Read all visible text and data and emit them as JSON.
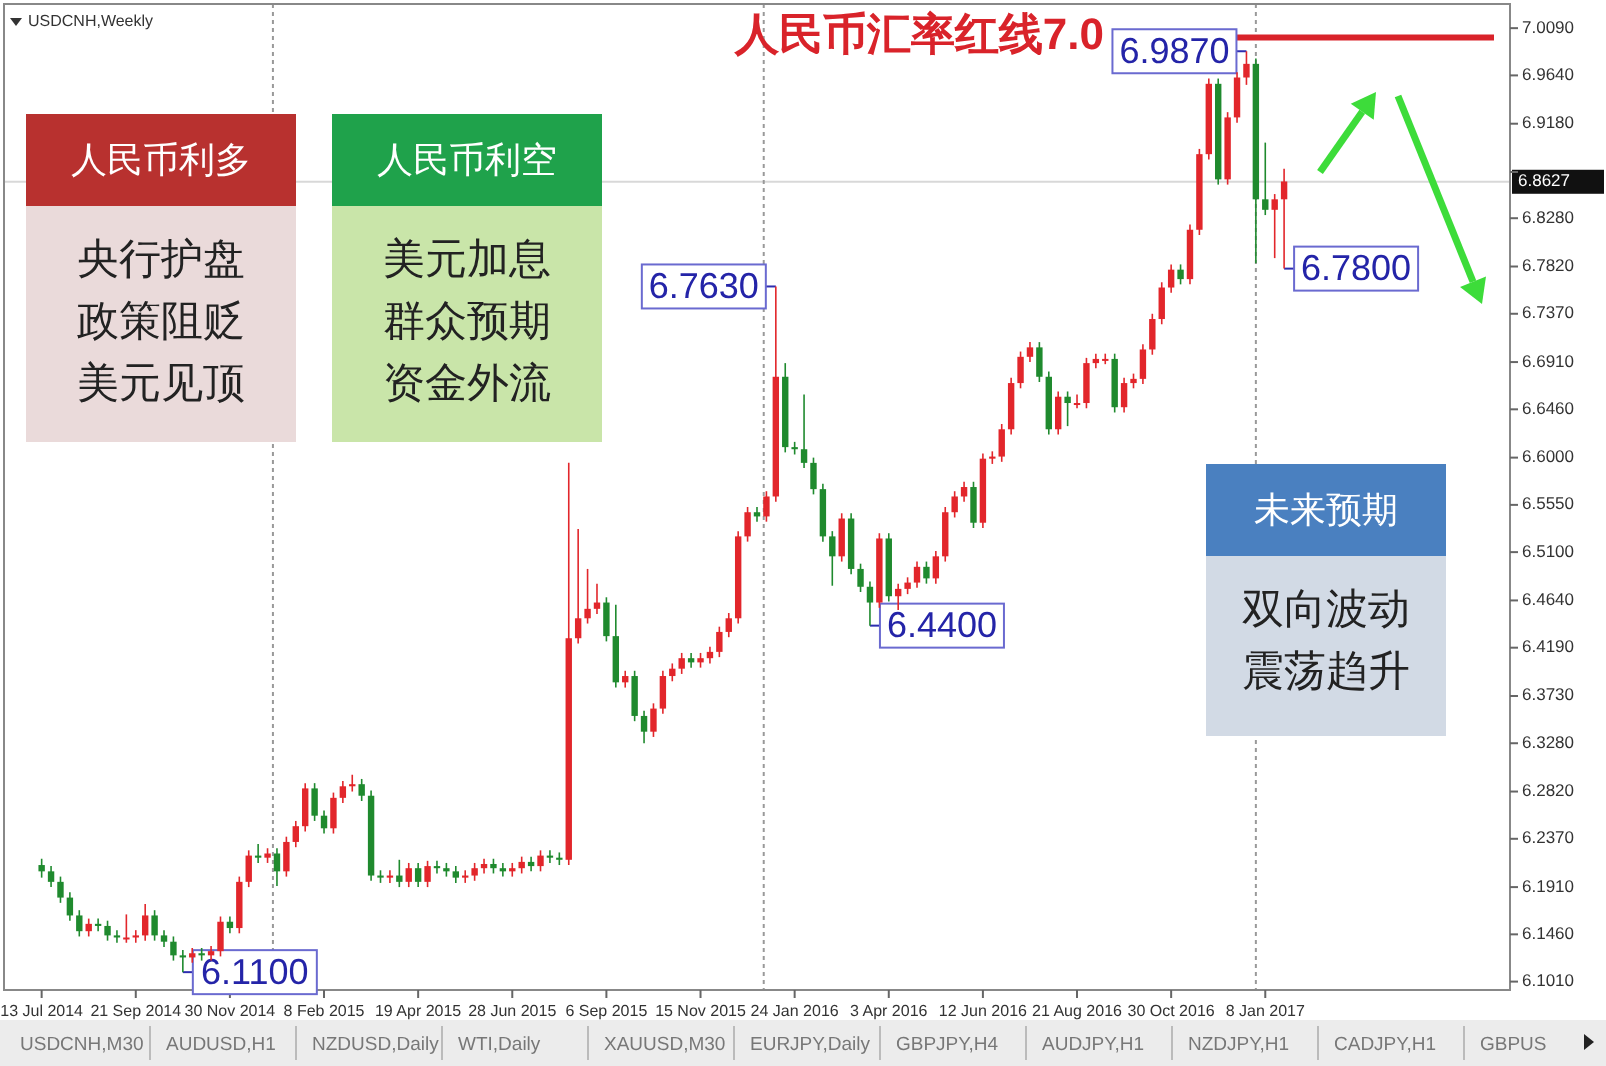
{
  "chart_data": {
    "type": "candlestick",
    "x": [
      "2014-07-13",
      "2014-07-20",
      "2014-07-27",
      "2014-08-03",
      "2014-08-10",
      "2014-08-17",
      "2014-08-24",
      "2014-08-31",
      "2014-09-07",
      "2014-09-14",
      "2014-09-21",
      "2014-09-28",
      "2014-10-05",
      "2014-10-12",
      "2014-10-19",
      "2014-10-26",
      "2014-11-02",
      "2014-11-09",
      "2014-11-16",
      "2014-11-23",
      "2014-11-30",
      "2014-12-07",
      "2014-12-14",
      "2014-12-21",
      "2014-12-28",
      "2015-01-04",
      "2015-01-11",
      "2015-01-18",
      "2015-01-25",
      "2015-02-01",
      "2015-02-08",
      "2015-02-15",
      "2015-02-22",
      "2015-03-01",
      "2015-03-08",
      "2015-03-15",
      "2015-03-22",
      "2015-03-29",
      "2015-04-05",
      "2015-04-12",
      "2015-04-19",
      "2015-04-26",
      "2015-05-03",
      "2015-05-10",
      "2015-05-17",
      "2015-05-24",
      "2015-05-31",
      "2015-06-07",
      "2015-06-14",
      "2015-06-21",
      "2015-06-28",
      "2015-07-05",
      "2015-07-12",
      "2015-07-19",
      "2015-07-26",
      "2015-08-02",
      "2015-08-09",
      "2015-08-16",
      "2015-08-23",
      "2015-08-30",
      "2015-09-06",
      "2015-09-13",
      "2015-09-20",
      "2015-09-27",
      "2015-10-04",
      "2015-10-11",
      "2015-10-18",
      "2015-10-25",
      "2015-11-01",
      "2015-11-08",
      "2015-11-15",
      "2015-11-22",
      "2015-11-29",
      "2015-12-06",
      "2015-12-13",
      "2015-12-20",
      "2015-12-27",
      "2016-01-03",
      "2016-01-10",
      "2016-01-17",
      "2016-01-24",
      "2016-01-31",
      "2016-02-07",
      "2016-02-14",
      "2016-02-21",
      "2016-02-28",
      "2016-03-06",
      "2016-03-13",
      "2016-03-20",
      "2016-03-27",
      "2016-04-03",
      "2016-04-10",
      "2016-04-17",
      "2016-04-24",
      "2016-05-01",
      "2016-05-08",
      "2016-05-15",
      "2016-05-22",
      "2016-05-29",
      "2016-06-05",
      "2016-06-12",
      "2016-06-19",
      "2016-06-26",
      "2016-07-03",
      "2016-07-10",
      "2016-07-17",
      "2016-07-24",
      "2016-07-31",
      "2016-08-07",
      "2016-08-14",
      "2016-08-21",
      "2016-08-28",
      "2016-09-04",
      "2016-09-11",
      "2016-09-18",
      "2016-09-25",
      "2016-10-02",
      "2016-10-09",
      "2016-10-16",
      "2016-10-23",
      "2016-10-30",
      "2016-11-06",
      "2016-11-13",
      "2016-11-20",
      "2016-11-27",
      "2016-12-04",
      "2016-12-11",
      "2016-12-18",
      "2016-12-25",
      "2017-01-01",
      "2017-01-08",
      "2017-01-15",
      "2017-01-22"
    ],
    "ohlc": [
      [
        6.212,
        6.218,
        6.2,
        6.206
      ],
      [
        6.206,
        6.211,
        6.191,
        6.196
      ],
      [
        6.196,
        6.201,
        6.176,
        6.181
      ],
      [
        6.181,
        6.186,
        6.159,
        6.164
      ],
      [
        6.164,
        6.169,
        6.144,
        6.149
      ],
      [
        6.149,
        6.161,
        6.144,
        6.156
      ],
      [
        6.156,
        6.161,
        6.149,
        6.154
      ],
      [
        6.154,
        6.159,
        6.14,
        6.145
      ],
      [
        6.145,
        6.15,
        6.138,
        6.143
      ],
      [
        6.143,
        6.165,
        6.138,
        6.143
      ],
      [
        6.143,
        6.15,
        6.138,
        6.145
      ],
      [
        6.145,
        6.175,
        6.14,
        6.164
      ],
      [
        6.164,
        6.169,
        6.14,
        6.145
      ],
      [
        6.145,
        6.15,
        6.134,
        6.139
      ],
      [
        6.139,
        6.144,
        6.121,
        6.126
      ],
      [
        6.126,
        6.131,
        6.11,
        6.124
      ],
      [
        6.124,
        6.133,
        6.119,
        6.128
      ],
      [
        6.128,
        6.133,
        6.121,
        6.126
      ],
      [
        6.126,
        6.135,
        6.121,
        6.13
      ],
      [
        6.13,
        6.163,
        6.125,
        6.158
      ],
      [
        6.158,
        6.163,
        6.147,
        6.152
      ],
      [
        6.152,
        6.201,
        6.147,
        6.196
      ],
      [
        6.196,
        6.226,
        6.191,
        6.221
      ],
      [
        6.221,
        6.232,
        6.214,
        6.219
      ],
      [
        6.219,
        6.228,
        6.214,
        6.223
      ],
      [
        6.223,
        6.228,
        6.192,
        6.206
      ],
      [
        6.206,
        6.239,
        6.201,
        6.234
      ],
      [
        6.234,
        6.254,
        6.229,
        6.249
      ],
      [
        6.249,
        6.29,
        6.244,
        6.285
      ],
      [
        6.285,
        6.29,
        6.254,
        6.259
      ],
      [
        6.259,
        6.264,
        6.242,
        6.247
      ],
      [
        6.247,
        6.281,
        6.242,
        6.276
      ],
      [
        6.276,
        6.292,
        6.271,
        6.287
      ],
      [
        6.287,
        6.298,
        6.282,
        6.289
      ],
      [
        6.289,
        6.294,
        6.273,
        6.278
      ],
      [
        6.278,
        6.283,
        6.197,
        6.202
      ],
      [
        6.202,
        6.207,
        6.195,
        6.2
      ],
      [
        6.2,
        6.207,
        6.195,
        6.202
      ],
      [
        6.202,
        6.217,
        6.191,
        6.196
      ],
      [
        6.196,
        6.214,
        6.191,
        6.209
      ],
      [
        6.209,
        6.214,
        6.191,
        6.196
      ],
      [
        6.196,
        6.216,
        6.191,
        6.211
      ],
      [
        6.211,
        6.216,
        6.204,
        6.209
      ],
      [
        6.209,
        6.214,
        6.201,
        6.206
      ],
      [
        6.206,
        6.211,
        6.195,
        6.2
      ],
      [
        6.2,
        6.207,
        6.195,
        6.202
      ],
      [
        6.202,
        6.214,
        6.197,
        6.209
      ],
      [
        6.209,
        6.218,
        6.204,
        6.213
      ],
      [
        6.213,
        6.218,
        6.204,
        6.209
      ],
      [
        6.209,
        6.214,
        6.201,
        6.206
      ],
      [
        6.206,
        6.214,
        6.201,
        6.209
      ],
      [
        6.209,
        6.22,
        6.204,
        6.215
      ],
      [
        6.215,
        6.22,
        6.206,
        6.211
      ],
      [
        6.211,
        6.226,
        6.206,
        6.221
      ],
      [
        6.221,
        6.226,
        6.214,
        6.219
      ],
      [
        6.219,
        6.224,
        6.212,
        6.217
      ],
      [
        6.217,
        6.595,
        6.212,
        6.428
      ],
      [
        6.428,
        6.532,
        6.423,
        6.447
      ],
      [
        6.447,
        6.494,
        6.442,
        6.456
      ],
      [
        6.456,
        6.48,
        6.451,
        6.462
      ],
      [
        6.462,
        6.467,
        6.425,
        6.43
      ],
      [
        6.43,
        6.46,
        6.381,
        6.386
      ],
      [
        6.386,
        6.397,
        6.381,
        6.392
      ],
      [
        6.392,
        6.397,
        6.349,
        6.354
      ],
      [
        6.354,
        6.359,
        6.328,
        6.339
      ],
      [
        6.339,
        6.366,
        6.334,
        6.361
      ],
      [
        6.361,
        6.397,
        6.356,
        6.392
      ],
      [
        6.392,
        6.404,
        6.387,
        6.399
      ],
      [
        6.399,
        6.414,
        6.394,
        6.409
      ],
      [
        6.409,
        6.414,
        6.4,
        6.405
      ],
      [
        6.405,
        6.414,
        6.4,
        6.409
      ],
      [
        6.409,
        6.42,
        6.404,
        6.415
      ],
      [
        6.415,
        6.439,
        6.41,
        6.434
      ],
      [
        6.434,
        6.452,
        6.429,
        6.447
      ],
      [
        6.447,
        6.53,
        6.442,
        6.525
      ],
      [
        6.525,
        6.553,
        6.52,
        6.548
      ],
      [
        6.548,
        6.553,
        6.539,
        6.544
      ],
      [
        6.544,
        6.568,
        6.539,
        6.563
      ],
      [
        6.563,
        6.763,
        6.558,
        6.677
      ],
      [
        6.677,
        6.69,
        6.605,
        6.61
      ],
      [
        6.61,
        6.615,
        6.603,
        6.608
      ],
      [
        6.608,
        6.66,
        6.59,
        6.595
      ],
      [
        6.595,
        6.6,
        6.565,
        6.57
      ],
      [
        6.57,
        6.575,
        6.52,
        6.525
      ],
      [
        6.525,
        6.53,
        6.478,
        6.506
      ],
      [
        6.506,
        6.547,
        6.501,
        6.542
      ],
      [
        6.542,
        6.547,
        6.489,
        6.494
      ],
      [
        6.494,
        6.499,
        6.472,
        6.477
      ],
      [
        6.477,
        6.482,
        6.44,
        6.462
      ],
      [
        6.462,
        6.528,
        6.457,
        6.523
      ],
      [
        6.523,
        6.528,
        6.463,
        6.468
      ],
      [
        6.468,
        6.48,
        6.455,
        6.475
      ],
      [
        6.475,
        6.486,
        6.47,
        6.481
      ],
      [
        6.481,
        6.501,
        6.476,
        6.496
      ],
      [
        6.496,
        6.501,
        6.48,
        6.485
      ],
      [
        6.485,
        6.511,
        6.48,
        6.506
      ],
      [
        6.506,
        6.553,
        6.501,
        6.548
      ],
      [
        6.548,
        6.568,
        6.543,
        6.563
      ],
      [
        6.563,
        6.577,
        6.558,
        6.572
      ],
      [
        6.572,
        6.577,
        6.533,
        6.538
      ],
      [
        6.538,
        6.604,
        6.533,
        6.599
      ],
      [
        6.599,
        6.606,
        6.594,
        6.601
      ],
      [
        6.601,
        6.632,
        6.596,
        6.627
      ],
      [
        6.627,
        6.676,
        6.622,
        6.671
      ],
      [
        6.671,
        6.701,
        6.666,
        6.696
      ],
      [
        6.696,
        6.71,
        6.691,
        6.705
      ],
      [
        6.705,
        6.71,
        6.672,
        6.677
      ],
      [
        6.677,
        6.682,
        6.622,
        6.627
      ],
      [
        6.627,
        6.663,
        6.622,
        6.658
      ],
      [
        6.658,
        6.663,
        6.63,
        6.652
      ],
      [
        6.652,
        6.66,
        6.647,
        6.652
      ],
      [
        6.652,
        6.695,
        6.647,
        6.69
      ],
      [
        6.69,
        6.699,
        6.685,
        6.694
      ],
      [
        6.694,
        6.699,
        6.689,
        6.694
      ],
      [
        6.694,
        6.699,
        6.643,
        6.648
      ],
      [
        6.648,
        6.676,
        6.643,
        6.671
      ],
      [
        6.671,
        6.68,
        6.666,
        6.675
      ],
      [
        6.675,
        6.708,
        6.67,
        6.703
      ],
      [
        6.703,
        6.737,
        6.698,
        6.732
      ],
      [
        6.732,
        6.767,
        6.727,
        6.762
      ],
      [
        6.762,
        6.784,
        6.757,
        6.779
      ],
      [
        6.779,
        6.784,
        6.765,
        6.77
      ],
      [
        6.77,
        6.822,
        6.765,
        6.817
      ],
      [
        6.817,
        6.894,
        6.812,
        6.889
      ],
      [
        6.889,
        6.961,
        6.884,
        6.956
      ],
      [
        6.956,
        6.961,
        6.86,
        6.865
      ],
      [
        6.865,
        6.929,
        6.86,
        6.924
      ],
      [
        6.924,
        6.967,
        6.919,
        6.962
      ],
      [
        6.962,
        6.987,
        6.955,
        6.975
      ],
      [
        6.975,
        6.98,
        6.785,
        6.846
      ],
      [
        6.846,
        6.9,
        6.831,
        6.836
      ],
      [
        6.836,
        6.851,
        6.79,
        6.846
      ],
      [
        6.846,
        6.875,
        6.78,
        6.863
      ]
    ],
    "xlim": [
      "2014-06-15",
      "2017-07-09"
    ],
    "xticks": [
      {
        "value": "2014-07-13",
        "label": "13 Jul 2014"
      },
      {
        "value": "2014-09-21",
        "label": "21 Sep 2014"
      },
      {
        "value": "2014-11-30",
        "label": "30 Nov 2014"
      },
      {
        "value": "2015-02-08",
        "label": "8 Feb 2015"
      },
      {
        "value": "2015-04-19",
        "label": "19 Apr 2015"
      },
      {
        "value": "2015-06-28",
        "label": "28 Jun 2015"
      },
      {
        "value": "2015-09-06",
        "label": "6 Sep 2015"
      },
      {
        "value": "2015-11-15",
        "label": "15 Nov 2015"
      },
      {
        "value": "2016-01-24",
        "label": "24 Jan 2016"
      },
      {
        "value": "2016-04-03",
        "label": "3 Apr 2016"
      },
      {
        "value": "2016-06-12",
        "label": "12 Jun 2016"
      },
      {
        "value": "2016-08-21",
        "label": "21 Aug 2016"
      },
      {
        "value": "2016-10-30",
        "label": "30 Oct 2016"
      },
      {
        "value": "2017-01-08",
        "label": "8 Jan 2017"
      }
    ],
    "ylim": [
      6.093,
      7.032
    ],
    "yticks": [
      {
        "value": 7.009,
        "label": "7.0090"
      },
      {
        "value": 6.964,
        "label": "6.9640"
      },
      {
        "value": 6.918,
        "label": "6.9180"
      },
      {
        "value": 6.872,
        "label": null
      },
      {
        "value": 6.828,
        "label": "6.8280"
      },
      {
        "value": 6.782,
        "label": "6.7820"
      },
      {
        "value": 6.737,
        "label": "6.7370"
      },
      {
        "value": 6.691,
        "label": "6.6910"
      },
      {
        "value": 6.646,
        "label": "6.6460"
      },
      {
        "value": 6.6,
        "label": "6.6000"
      },
      {
        "value": 6.555,
        "label": "6.5550"
      },
      {
        "value": 6.51,
        "label": "6.5100"
      },
      {
        "value": 6.464,
        "label": "6.4640"
      },
      {
        "value": 6.419,
        "label": "6.4190"
      },
      {
        "value": 6.373,
        "label": "6.3730"
      },
      {
        "value": 6.328,
        "label": "6.3280"
      },
      {
        "value": 6.282,
        "label": "6.2820"
      },
      {
        "value": 6.237,
        "label": "6.2370"
      },
      {
        "value": 6.191,
        "label": "6.1910"
      },
      {
        "value": 6.146,
        "label": "6.1460"
      },
      {
        "value": 6.101,
        "label": "6.1010"
      }
    ],
    "grid": false,
    "ref_lines": [
      {
        "axis": "y",
        "value": 7.0,
        "label": "人民币汇率红线7.0",
        "color": "#d9232a",
        "line_style": "solid"
      },
      {
        "axis": "y",
        "value": 6.8627,
        "label": "6.8627",
        "color": "#d8d8d8",
        "line_style": "solid"
      },
      {
        "axis": "x",
        "value": "2015-01-01",
        "label": null,
        "color": "#999999",
        "line_style": "dotted"
      },
      {
        "axis": "x",
        "value": "2016-01-01",
        "label": null,
        "color": "#999999",
        "line_style": "dotted"
      },
      {
        "axis": "x",
        "value": "2017-01-01",
        "label": null,
        "color": "#999999",
        "line_style": "dotted"
      }
    ],
    "annotations": [
      "USDCNH,Weekly",
      "人民币利多",
      "央行护盘",
      "政策阻贬",
      "美元见顶",
      "人民币利空",
      "美元加息",
      "群众预期",
      "资金外流",
      "未来预期",
      "双向波动",
      "震荡趋升",
      "USDCNH,M30",
      "AUDUSD,H1",
      "NZDUSD,Daily",
      "WTI,Daily",
      "XAUUSD,M30",
      "EURJPY,Daily",
      "GBPJPY,H4",
      "AUDJPY,H1",
      "NZDJPY,H1",
      "CADJPY,H1",
      "GBPUS",
      {
        "text": "6.1100",
        "x": "2014-10-26",
        "y": 6.11
      },
      {
        "text": "6.7630",
        "x": "2016-01-10",
        "y": 6.763
      },
      {
        "text": "6.4400",
        "x": "2016-03-20",
        "y": 6.44
      },
      {
        "text": "6.9870",
        "x": "2016-12-25",
        "y": 6.987
      },
      {
        "text": "6.7800",
        "x": "2017-01-22",
        "y": 6.78
      }
    ]
  }
}
